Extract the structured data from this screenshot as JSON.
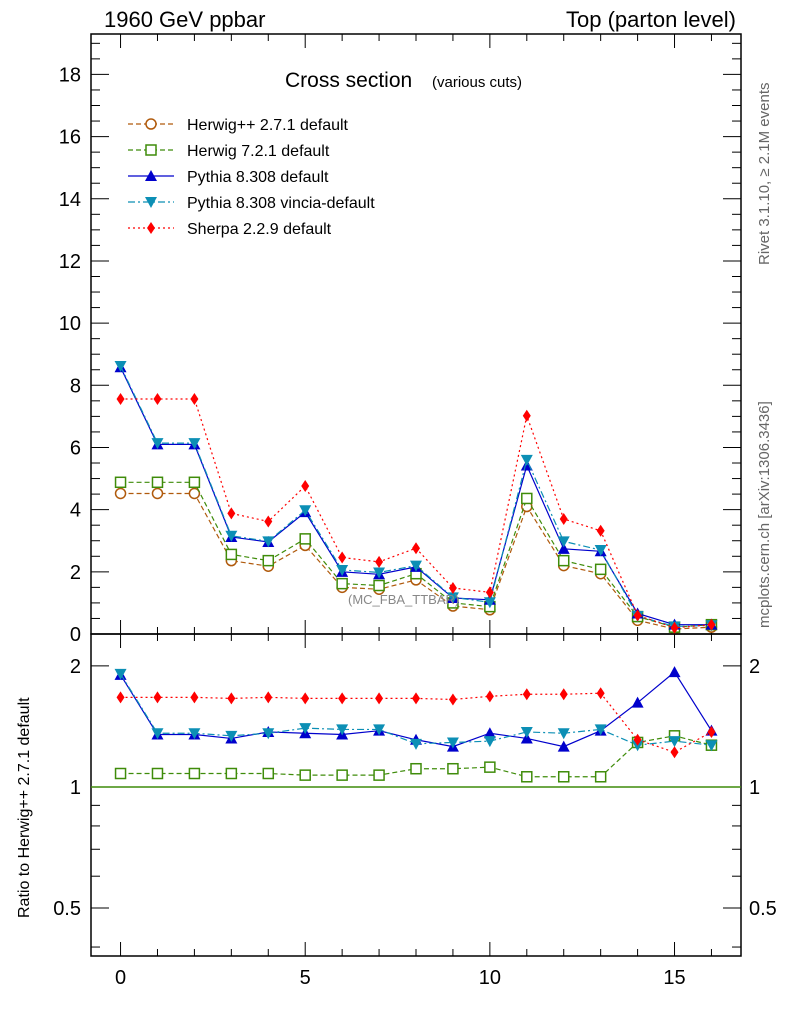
{
  "header": {
    "left": "1960 GeV ppbar",
    "right": "Top (parton level)"
  },
  "side": {
    "rivet": "Rivet 3.1.10, ≥ 2.1M events",
    "mcplots": "mcplots.cern.ch [arXiv:1306.3436]"
  },
  "ratio_ylabel": "Ratio to Herwig++ 2.7.1 default",
  "watermark": "(MC_FBA_TTBAR)",
  "chart_data": [
    {
      "type": "line",
      "title": "Cross section",
      "subtitle": "(various cuts)",
      "ylim": [
        0,
        19.3
      ],
      "xlim": [
        -0.8,
        16.8
      ],
      "grid": false,
      "legend_placement": "top-left",
      "x": [
        0,
        1,
        2,
        3,
        4,
        5,
        6,
        7,
        8,
        9,
        10,
        11,
        12,
        13,
        14,
        15,
        16
      ],
      "yticks": [
        "0",
        "2",
        "4",
        "6",
        "8",
        "10",
        "12",
        "14",
        "16",
        "18"
      ],
      "series": [
        {
          "name": "Herwig++ 2.7.1 default",
          "color": "#b05a0c",
          "marker": "open-circle",
          "dash": "dashed",
          "values": [
            4.52,
            4.52,
            4.52,
            2.36,
            2.18,
            2.85,
            1.5,
            1.44,
            1.74,
            0.9,
            0.78,
            4.1,
            2.2,
            1.94,
            0.44,
            0.16,
            0.22
          ]
        },
        {
          "name": "Herwig 7.2.1 default",
          "color": "#3f8c0a",
          "marker": "open-square",
          "dash": "dashed",
          "values": [
            4.88,
            4.88,
            4.88,
            2.56,
            2.36,
            3.06,
            1.62,
            1.56,
            1.94,
            1.0,
            0.88,
            4.36,
            2.36,
            2.08,
            0.56,
            0.22,
            0.3
          ]
        },
        {
          "name": "Pythia 8.308 default",
          "color": "#0000cc",
          "marker": "triangle-up",
          "dash": "solid",
          "values": [
            8.58,
            6.1,
            6.1,
            3.12,
            2.96,
            3.92,
            2.0,
            1.92,
            2.16,
            1.16,
            1.1,
            5.42,
            2.74,
            2.66,
            0.66,
            0.3,
            0.3
          ]
        },
        {
          "name": "Pythia 8.308 vincia-default",
          "color": "#0c8fb5",
          "marker": "triangle-down",
          "dash": "dashdot",
          "values": [
            8.62,
            6.14,
            6.14,
            3.16,
            2.98,
            3.98,
            2.06,
            1.98,
            2.2,
            1.18,
            1.02,
            5.6,
            2.98,
            2.7,
            0.58,
            0.24,
            0.28
          ]
        },
        {
          "name": "Sherpa 2.2.9 default",
          "color": "#ff0000",
          "marker": "diamond",
          "dash": "dotted",
          "values": [
            7.56,
            7.56,
            7.56,
            3.88,
            3.62,
            4.76,
            2.46,
            2.32,
            2.76,
            1.48,
            1.34,
            7.02,
            3.7,
            3.32,
            0.6,
            0.2,
            0.3
          ]
        }
      ]
    },
    {
      "type": "line",
      "ylabel": "Ratio to Herwig++ 2.7.1 default",
      "ylim": [
        0.38,
        2.4
      ],
      "xlim": [
        -0.8,
        16.8
      ],
      "log_y": true,
      "reference_value": 1,
      "x": [
        0,
        1,
        2,
        3,
        4,
        5,
        6,
        7,
        8,
        9,
        10,
        11,
        12,
        13,
        14,
        15,
        16
      ],
      "xticks": [
        "0",
        "5",
        "10",
        "15"
      ],
      "yticks": [
        "0.5",
        "1",
        "2"
      ],
      "series": [
        {
          "name": "Herwig 7.2.1 default",
          "values": [
            1.08,
            1.08,
            1.08,
            1.08,
            1.08,
            1.07,
            1.07,
            1.07,
            1.11,
            1.11,
            1.12,
            1.06,
            1.06,
            1.06,
            1.29,
            1.34,
            1.27
          ]
        },
        {
          "name": "Pythia 8.308 default",
          "values": [
            1.9,
            1.35,
            1.35,
            1.32,
            1.37,
            1.36,
            1.35,
            1.38,
            1.31,
            1.26,
            1.36,
            1.32,
            1.26,
            1.38,
            1.62,
            1.93,
            1.38
          ]
        },
        {
          "name": "Pythia 8.308 vincia-default",
          "values": [
            1.91,
            1.36,
            1.36,
            1.34,
            1.36,
            1.4,
            1.39,
            1.39,
            1.28,
            1.29,
            1.3,
            1.37,
            1.36,
            1.39,
            1.27,
            1.3,
            1.27
          ]
        },
        {
          "name": "Sherpa 2.2.9 default",
          "values": [
            1.67,
            1.67,
            1.67,
            1.66,
            1.67,
            1.66,
            1.66,
            1.66,
            1.66,
            1.65,
            1.68,
            1.7,
            1.7,
            1.71,
            1.31,
            1.22,
            1.37
          ]
        }
      ]
    }
  ]
}
